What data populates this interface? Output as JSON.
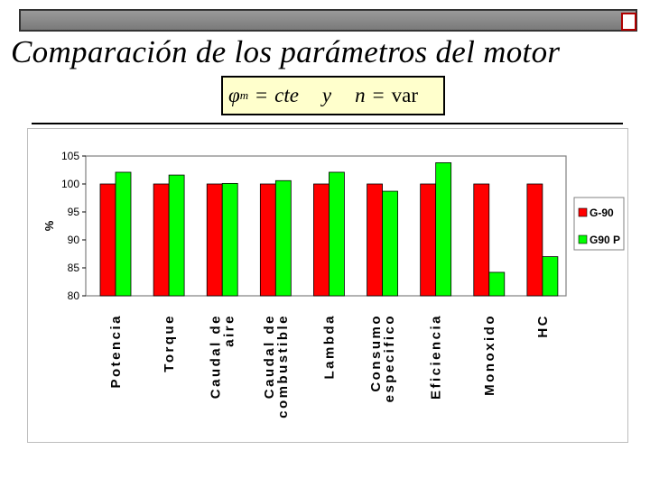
{
  "slide": {
    "title": "Comparación de los parámetros del motor",
    "formula": {
      "phi": "φ",
      "phi_sub": "m",
      "equals1": "=",
      "cte": "cte",
      "y": "y",
      "n": "n",
      "equals2": "=",
      "var": "var"
    }
  },
  "colors": {
    "g90": "#ff0000",
    "g90p": "#00ff00",
    "bar_stroke": "#000000",
    "plot_border": "#808080"
  },
  "chart_data": {
    "type": "bar",
    "categories": [
      [
        "Potencia"
      ],
      [
        "Torque"
      ],
      [
        "Caudal de",
        "aire"
      ],
      [
        "Caudal de",
        "combustible"
      ],
      [
        "Lambda"
      ],
      [
        "Consumo",
        "especifico"
      ],
      [
        "Eficiencia"
      ],
      [
        "Monoxido"
      ],
      [
        "HC"
      ]
    ],
    "series": [
      {
        "name": "G-90",
        "values": [
          100,
          100,
          100,
          100,
          100,
          100,
          100,
          100,
          100
        ]
      },
      {
        "name": "G90 P",
        "values": [
          102.1,
          101.6,
          100.1,
          100.6,
          102.1,
          98.7,
          103.8,
          84.2,
          87.0
        ]
      }
    ],
    "ylabel": "%",
    "ylim": [
      80,
      105
    ],
    "yticks": [
      80,
      85,
      90,
      95,
      100,
      105
    ],
    "legend_position": "right",
    "grid": false
  }
}
